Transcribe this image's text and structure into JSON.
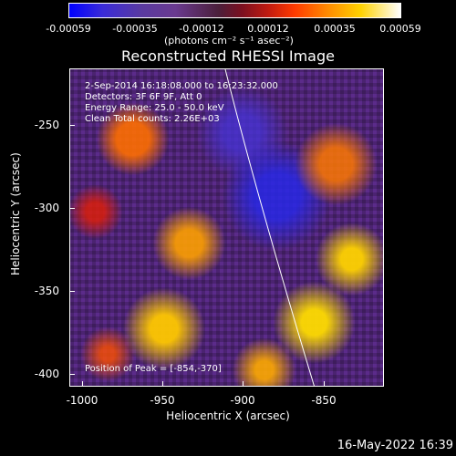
{
  "colorbar": {
    "ticks": [
      "-0.00059",
      "-0.00035",
      "-0.00012",
      "0.00012",
      "0.00035",
      "0.00059"
    ],
    "units": "(photons cm⁻² s⁻¹ asec⁻²)"
  },
  "title": "Reconstructed RHESSI Image",
  "info": {
    "line1": "2-Sep-2014 16:18:08.000 to 16:23:32.000",
    "line2": "Detectors: 3F 6F 9F, Att 0",
    "line3": "Energy Range: 25.0 - 50.0 keV",
    "line4": "Clean      Total counts: 2.26E+03"
  },
  "peak_label": "Position of Peak = [-854,-370]",
  "axes": {
    "xlabel": "Heliocentric X (arcsec)",
    "ylabel": "Heliocentric Y (arcsec)",
    "xticks": [
      "-1000",
      "-950",
      "-900",
      "-850"
    ],
    "yticks": [
      "-250",
      "-300",
      "-350",
      "-400"
    ]
  },
  "timestamp": "16-May-2022 16:39"
}
